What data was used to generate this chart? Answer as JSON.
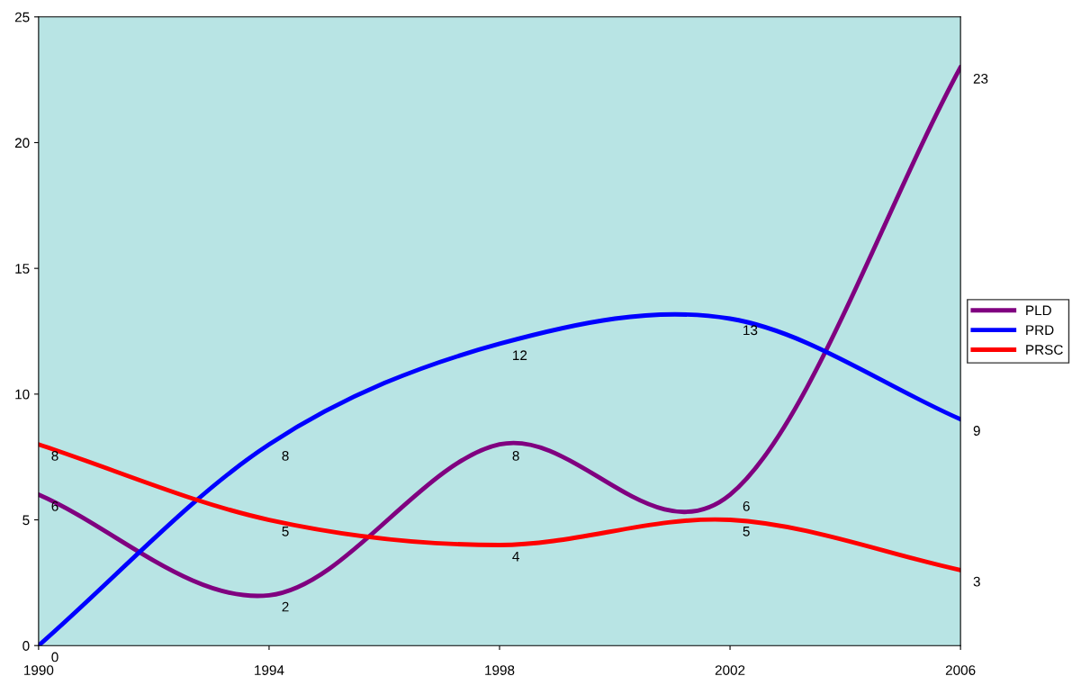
{
  "chart_data": {
    "type": "line",
    "x": [
      1990,
      1994,
      1998,
      2002,
      2006
    ],
    "series": [
      {
        "name": "PLD",
        "color": "#800080",
        "values": [
          6,
          2,
          8,
          6,
          23
        ]
      },
      {
        "name": "PRD",
        "color": "#0000ff",
        "values": [
          0,
          8,
          12,
          13,
          9
        ]
      },
      {
        "name": "PRSC",
        "color": "#ff0000",
        "values": [
          8,
          5,
          4,
          5,
          3
        ]
      }
    ],
    "xlim": [
      1990,
      2006
    ],
    "xticks": [
      1990,
      1994,
      1998,
      2002,
      2006
    ],
    "ylim": [
      0,
      25
    ],
    "yticks": [
      0,
      5,
      10,
      15,
      20,
      25
    ],
    "data_labels": true,
    "legend": "right",
    "grid": false,
    "marker": "none",
    "line_style": "solid"
  }
}
